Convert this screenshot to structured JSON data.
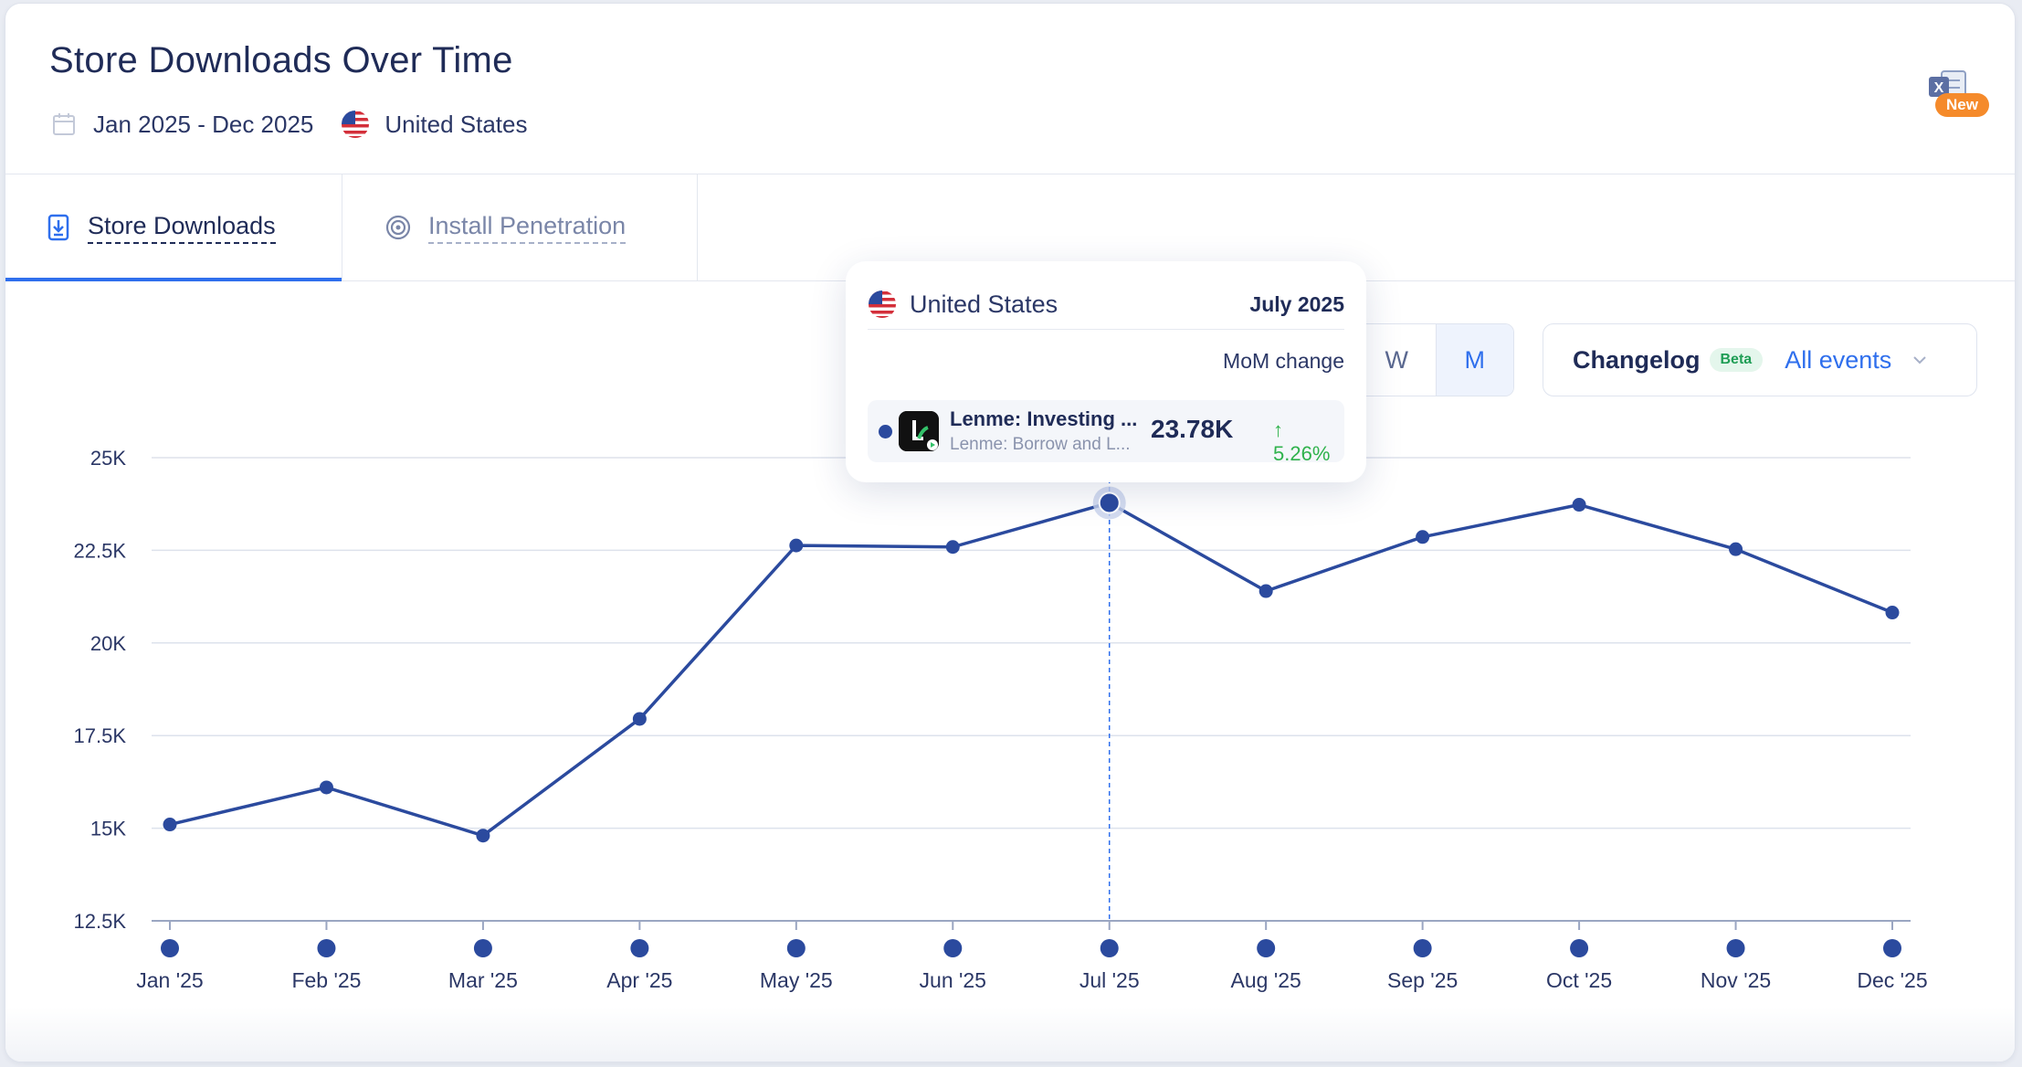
{
  "header": {
    "title": "Store Downloads Over Time",
    "date_range": "Jan 2025 - Dec 2025",
    "country": "United States",
    "export_badge": "New"
  },
  "tabs": [
    {
      "label": "Store Downloads",
      "active": true
    },
    {
      "label": "Install Penetration",
      "active": false
    }
  ],
  "granularity": {
    "options": [
      "W",
      "M"
    ],
    "selected": "M"
  },
  "changelog": {
    "label": "Changelog",
    "badge": "Beta",
    "value": "All events"
  },
  "tooltip": {
    "country": "United States",
    "date": "July 2025",
    "mom_label": "MoM change",
    "app_name": "Lenme: Investing ...",
    "app_subtitle": "Lenme: Borrow and L...",
    "value": "23.78K",
    "change": "↑ 5.26%"
  },
  "chart_data": {
    "type": "line",
    "title": "",
    "xlabel": "",
    "ylabel": "",
    "categories": [
      "Jan '25",
      "Feb '25",
      "Mar '25",
      "Apr '25",
      "May '25",
      "Jun '25",
      "Jul '25",
      "Aug '25",
      "Sep '25",
      "Oct '25",
      "Nov '25",
      "Dec '25"
    ],
    "series": [
      {
        "values": [
          15100,
          16100,
          14800,
          17950,
          22630,
          22590,
          23780,
          21400,
          22860,
          23730,
          22530,
          20820
        ],
        "color": "#2b4a9e"
      }
    ],
    "ylim": [
      12500,
      25000
    ],
    "yticks": [
      12500,
      15000,
      17500,
      20000,
      22500,
      25000
    ],
    "ytick_labels": [
      "12.5K",
      "15K",
      "17.5K",
      "20K",
      "22.5K",
      "25K"
    ],
    "highlight_index": 6,
    "grid": true
  },
  "colors": {
    "line": "#2b4a9e",
    "accent": "#2f6fed",
    "positive": "#2fb24c",
    "badge": "#f58a2a"
  }
}
